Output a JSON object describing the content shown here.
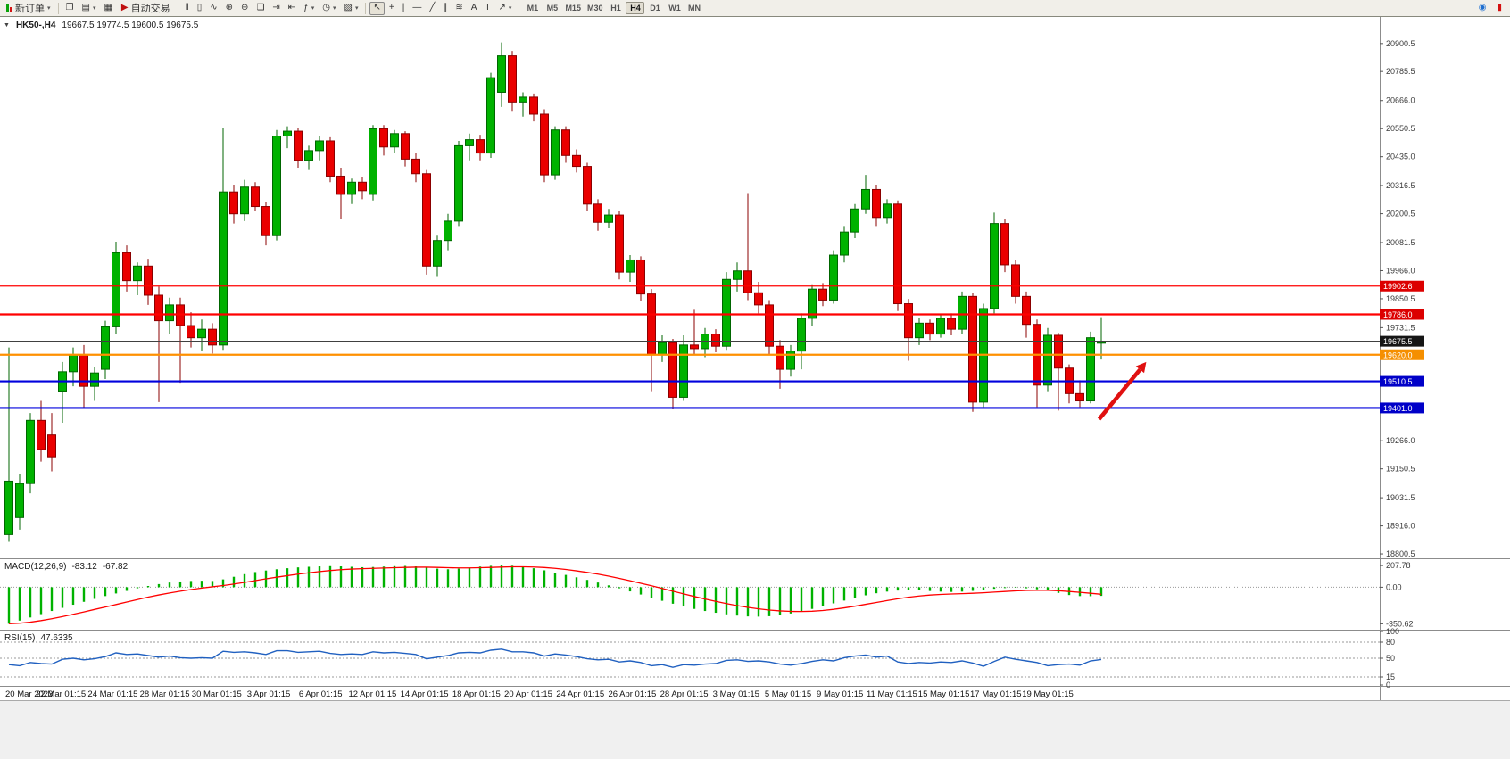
{
  "toolbar": {
    "new_order_label": "新订单",
    "auto_trading_label": "自动交易",
    "timeframes": [
      "M1",
      "M5",
      "M15",
      "M30",
      "H1",
      "H4",
      "D1",
      "W1",
      "MN"
    ],
    "active_timeframe": "H4",
    "window_tools": [
      {
        "name": "new-chart-icon",
        "glyph": "❐"
      },
      {
        "name": "profiles-icon",
        "glyph": "▤",
        "caret": true
      },
      {
        "name": "data-window-icon",
        "glyph": "▦"
      }
    ],
    "chart_tools": [
      {
        "name": "bar-chart-icon",
        "glyph": "‖"
      },
      {
        "name": "candlestick-chart-icon",
        "glyph": "▯"
      },
      {
        "name": "line-chart-icon",
        "glyph": "∿"
      },
      {
        "name": "zoom-in-icon",
        "glyph": "⊕"
      },
      {
        "name": "zoom-out-icon",
        "glyph": "⊖"
      },
      {
        "name": "tile-windows-icon",
        "glyph": "❏"
      },
      {
        "name": "auto-scroll-icon",
        "glyph": "⇥"
      },
      {
        "name": "chart-shift-icon",
        "glyph": "⇤"
      },
      {
        "name": "indicators-icon",
        "glyph": "ƒ",
        "caret": true
      },
      {
        "name": "periods-icon",
        "glyph": "◷",
        "caret": true
      },
      {
        "name": "templates-icon",
        "glyph": "▧",
        "caret": true
      }
    ],
    "drawing_tools": [
      {
        "name": "cursor-icon",
        "glyph": "↖",
        "active": true
      },
      {
        "name": "crosshair-icon",
        "glyph": "+"
      },
      {
        "name": "vertical-line-icon",
        "glyph": "|"
      },
      {
        "name": "horizontal-line-icon",
        "glyph": "—"
      },
      {
        "name": "trendline-icon",
        "glyph": "╱"
      },
      {
        "name": "channel-icon",
        "glyph": "∥"
      },
      {
        "name": "fibonacci-icon",
        "glyph": "≋"
      },
      {
        "name": "text-icon",
        "glyph": "A"
      },
      {
        "name": "label-icon",
        "glyph": "T"
      },
      {
        "name": "arrows-icon",
        "glyph": "↗",
        "caret": true
      }
    ],
    "right_tools": [
      {
        "name": "community-icon",
        "glyph": "◉",
        "color": "#1f6fd0"
      },
      {
        "name": "alert-icon",
        "glyph": "▮",
        "color": "#d41010"
      }
    ]
  },
  "chart": {
    "collapse_glyph": "▼",
    "symbol_period": "HK50-,H4",
    "ohlc_text": "19667.5 19774.5 19600.5 19675.5"
  },
  "indicators": {
    "macd": {
      "name": "MACD(12,26,9)",
      "value_main": "-83.12",
      "value_signal": "-67.82"
    },
    "rsi": {
      "name": "RSI(15)",
      "value": "47.6335"
    }
  },
  "chart_data": [
    {
      "type": "candlestick",
      "symbol": "HK50-",
      "period": "H4",
      "last_ohlc": {
        "open": 19667.5,
        "high": 19774.5,
        "low": 19600.5,
        "close": 19675.5
      },
      "ylim": [
        18786,
        21010
      ],
      "y_ticks": [
        "20900.5",
        "20785.5",
        "20666.0",
        "20550.5",
        "20435.0",
        "20316.5",
        "20200.5",
        "20081.5",
        "19966.0",
        "19850.5",
        "19731.5",
        "19266.0",
        "19150.5",
        "19031.5",
        "18916.0",
        "18800.5"
      ],
      "hlines": [
        {
          "price": "19902.6",
          "color": "#ff0000",
          "width": 1.2,
          "tag": "19902.6",
          "tag_color": "#dc0000"
        },
        {
          "price": "19786.0",
          "color": "#ff0000",
          "width": 2.2,
          "tag": "19786.0",
          "tag_color": "#dc0000"
        },
        {
          "price": "19675.5",
          "color": "#404040",
          "width": 1.2,
          "tag": "19675.5",
          "tag_color": "#151515"
        },
        {
          "price": "19620.0",
          "color": "#ff9000",
          "width": 2.2,
          "tag": "19620.0",
          "tag_color": "#f58f00"
        },
        {
          "price": "19510.5",
          "color": "#0000dd",
          "width": 2.2,
          "tag": "19510.5",
          "tag_color": "#0000c8"
        },
        {
          "price": "19401.0",
          "color": "#0000dd",
          "width": 2.2,
          "tag": "19401.0",
          "tag_color": "#0000c8"
        }
      ],
      "up_color": "#00b200",
      "down_color": "#ea0000",
      "up_border": "#006600",
      "down_border": "#8b0000",
      "annotation_arrow": {
        "from_index": 101.8,
        "from_price": 19355,
        "to_index": 106.2,
        "to_price": 19590,
        "color": "#e01010"
      },
      "x_labels": [
        "20 Mar 2023",
        "22 Mar 01:15",
        "24 Mar 01:15",
        "28 Mar 01:15",
        "30 Mar 01:15",
        "3 Apr 01:15",
        "6 Apr 01:15",
        "12 Apr 01:15",
        "14 Apr 01:15",
        "18 Apr 01:15",
        "20 Apr 01:15",
        "24 Apr 01:15",
        "26 Apr 01:15",
        "28 Apr 01:15",
        "3 May 01:15",
        "5 May 01:15",
        "9 May 01:15",
        "11 May 01:15",
        "15 May 01:15",
        "17 May 01:15",
        "19 May 01:15"
      ],
      "candles": [
        [
          18880,
          19650,
          18850,
          19100
        ],
        [
          18950,
          19130,
          18900,
          19090
        ],
        [
          19090,
          19380,
          19050,
          19350
        ],
        [
          19350,
          19430,
          19180,
          19230
        ],
        [
          19290,
          19380,
          19140,
          19200
        ],
        [
          19470,
          19590,
          19340,
          19550
        ],
        [
          19550,
          19650,
          19490,
          19620
        ],
        [
          19620,
          19660,
          19400,
          19490
        ],
        [
          19490,
          19570,
          19430,
          19545
        ],
        [
          19560,
          19760,
          19520,
          19735
        ],
        [
          19735,
          20085,
          19705,
          20040
        ],
        [
          20040,
          20070,
          19880,
          19925
        ],
        [
          19925,
          20000,
          19865,
          19985
        ],
        [
          19985,
          20015,
          19825,
          19865
        ],
        [
          19865,
          19900,
          19425,
          19760
        ],
        [
          19760,
          19855,
          19705,
          19825
        ],
        [
          19825,
          19855,
          19505,
          19740
        ],
        [
          19740,
          19795,
          19650,
          19690
        ],
        [
          19690,
          19765,
          19635,
          19725
        ],
        [
          19725,
          19750,
          19625,
          19660
        ],
        [
          19660,
          20555,
          19640,
          20290
        ],
        [
          20290,
          20320,
          20160,
          20200
        ],
        [
          20200,
          20340,
          20170,
          20310
        ],
        [
          20310,
          20330,
          20210,
          20230
        ],
        [
          20230,
          20250,
          20070,
          20110
        ],
        [
          20110,
          20545,
          20090,
          20520
        ],
        [
          20520,
          20560,
          20470,
          20540
        ],
        [
          20540,
          20555,
          20390,
          20420
        ],
        [
          20420,
          20480,
          20380,
          20460
        ],
        [
          20460,
          20520,
          20420,
          20500
        ],
        [
          20500,
          20515,
          20330,
          20355
        ],
        [
          20355,
          20390,
          20180,
          20280
        ],
        [
          20280,
          20345,
          20240,
          20330
        ],
        [
          20330,
          20350,
          20260,
          20295
        ],
        [
          20280,
          20565,
          20255,
          20550
        ],
        [
          20550,
          20565,
          20440,
          20475
        ],
        [
          20475,
          20545,
          20450,
          20530
        ],
        [
          20530,
          20540,
          20395,
          20425
        ],
        [
          20425,
          20450,
          20330,
          20365
        ],
        [
          20365,
          20380,
          19950,
          19985
        ],
        [
          19985,
          20110,
          19940,
          20090
        ],
        [
          20090,
          20200,
          20050,
          20170
        ],
        [
          20170,
          20500,
          20150,
          20480
        ],
        [
          20480,
          20530,
          20420,
          20505
        ],
        [
          20505,
          20525,
          20420,
          20450
        ],
        [
          20450,
          20780,
          20430,
          20760
        ],
        [
          20700,
          20905,
          20640,
          20850
        ],
        [
          20850,
          20870,
          20620,
          20660
        ],
        [
          20660,
          20700,
          20600,
          20680
        ],
        [
          20680,
          20695,
          20580,
          20610
        ],
        [
          20610,
          20630,
          20330,
          20360
        ],
        [
          20360,
          20560,
          20340,
          20545
        ],
        [
          20545,
          20560,
          20410,
          20440
        ],
        [
          20440,
          20465,
          20370,
          20395
        ],
        [
          20395,
          20410,
          20210,
          20240
        ],
        [
          20240,
          20260,
          20130,
          20165
        ],
        [
          20165,
          20220,
          20140,
          20195
        ],
        [
          20195,
          20210,
          19930,
          19960
        ],
        [
          19960,
          20030,
          19920,
          20010
        ],
        [
          20010,
          20025,
          19840,
          19870
        ],
        [
          19870,
          19890,
          19470,
          19620
        ],
        [
          19620,
          19700,
          19590,
          19670
        ],
        [
          19670,
          19685,
          19395,
          19445
        ],
        [
          19445,
          19700,
          19430,
          19660
        ],
        [
          19660,
          19805,
          19620,
          19645
        ],
        [
          19645,
          19730,
          19610,
          19705
        ],
        [
          19705,
          19725,
          19630,
          19655
        ],
        [
          19655,
          19960,
          19640,
          19930
        ],
        [
          19930,
          20000,
          19880,
          19965
        ],
        [
          19965,
          20285,
          19845,
          19875
        ],
        [
          19875,
          19920,
          19790,
          19825
        ],
        [
          19825,
          19845,
          19620,
          19655
        ],
        [
          19655,
          19680,
          19480,
          19560
        ],
        [
          19560,
          19660,
          19530,
          19635
        ],
        [
          19635,
          19790,
          19560,
          19770
        ],
        [
          19770,
          19910,
          19740,
          19890
        ],
        [
          19890,
          19915,
          19820,
          19845
        ],
        [
          19845,
          20050,
          19830,
          20030
        ],
        [
          20030,
          20150,
          20000,
          20125
        ],
        [
          20125,
          20240,
          20100,
          20220
        ],
        [
          20220,
          20360,
          20200,
          20300
        ],
        [
          20300,
          20320,
          20150,
          20185
        ],
        [
          20185,
          20260,
          20160,
          20240
        ],
        [
          20240,
          20255,
          19800,
          19830
        ],
        [
          19830,
          19850,
          19595,
          19690
        ],
        [
          19690,
          19770,
          19660,
          19750
        ],
        [
          19750,
          19765,
          19680,
          19705
        ],
        [
          19705,
          19785,
          19690,
          19770
        ],
        [
          19770,
          19790,
          19700,
          19725
        ],
        [
          19725,
          19880,
          19705,
          19860
        ],
        [
          19860,
          19875,
          19385,
          19425
        ],
        [
          19425,
          19830,
          19405,
          19810
        ],
        [
          19810,
          20205,
          19790,
          20160
        ],
        [
          20160,
          20180,
          19960,
          19990
        ],
        [
          19990,
          20010,
          19830,
          19860
        ],
        [
          19860,
          19880,
          19690,
          19745
        ],
        [
          19745,
          19765,
          19405,
          19495
        ],
        [
          19495,
          19730,
          19470,
          19700
        ],
        [
          19700,
          19710,
          19390,
          19565
        ],
        [
          19565,
          19580,
          19420,
          19460
        ],
        [
          19460,
          19515,
          19405,
          19430
        ],
        [
          19430,
          19715,
          19420,
          19690
        ],
        [
          19667.5,
          19774.5,
          19600.5,
          19675.5
        ]
      ]
    },
    {
      "type": "macd_histogram",
      "name": "MACD(12,26,9)",
      "current_main": -83.12,
      "current_signal": -67.82,
      "ylim": [
        -390,
        260
      ],
      "y_ticks": [
        "207.78",
        "0.00",
        "-350.62"
      ],
      "histogram_color": "#00b200",
      "signal_color": "#ff0000",
      "histogram": [
        -350,
        -320,
        -290,
        -258,
        -228,
        -198,
        -168,
        -140,
        -112,
        -85,
        -60,
        -35,
        -10,
        12,
        30,
        45,
        55,
        60,
        62,
        60,
        75,
        100,
        125,
        145,
        160,
        172,
        182,
        190,
        196,
        200,
        202,
        200,
        196,
        192,
        194,
        198,
        202,
        204,
        200,
        190,
        178,
        172,
        178,
        188,
        198,
        205,
        208,
        206,
        196,
        182,
        162,
        140,
        118,
        95,
        70,
        45,
        18,
        -10,
        -40,
        -70,
        -100,
        -130,
        -158,
        -185,
        -208,
        -228,
        -245,
        -260,
        -272,
        -280,
        -282,
        -278,
        -268,
        -252,
        -232,
        -208,
        -182,
        -155,
        -128,
        -102,
        -78,
        -58,
        -42,
        -32,
        -28,
        -30,
        -36,
        -42,
        -45,
        -42,
        -35,
        -25,
        -15,
        -8,
        -5,
        -10,
        -20,
        -35,
        -55,
        -75,
        -85,
        -86,
        -83.12
      ],
      "signal": [
        -350,
        -345,
        -335,
        -320,
        -302,
        -282,
        -260,
        -237,
        -213,
        -190,
        -166,
        -142,
        -118,
        -95,
        -74,
        -55,
        -38,
        -22,
        -8,
        4,
        16,
        30,
        46,
        63,
        80,
        96,
        111,
        125,
        138,
        150,
        160,
        168,
        174,
        178,
        181,
        184,
        187,
        190,
        192,
        192,
        190,
        187,
        185,
        185,
        187,
        190,
        193,
        196,
        196,
        194,
        189,
        181,
        170,
        157,
        142,
        125,
        106,
        85,
        62,
        38,
        14,
        -12,
        -38,
        -64,
        -89,
        -113,
        -136,
        -157,
        -176,
        -193,
        -207,
        -219,
        -227,
        -232,
        -233,
        -230,
        -223,
        -212,
        -198,
        -182,
        -164,
        -146,
        -128,
        -111,
        -96,
        -84,
        -75,
        -69,
        -65,
        -62,
        -58,
        -53,
        -47,
        -41,
        -35,
        -31,
        -29,
        -30,
        -34,
        -41,
        -49,
        -58,
        -67.82
      ]
    },
    {
      "type": "rsi_line",
      "name": "RSI(15)",
      "current": 47.6335,
      "ylim": [
        0,
        100
      ],
      "y_ticks": [
        "100",
        "80",
        "50",
        "15",
        "0"
      ],
      "levels": [
        80,
        50,
        15
      ],
      "line_color": "#2060c0",
      "values": [
        38,
        36,
        42,
        40,
        39,
        48,
        50,
        47,
        49,
        53,
        60,
        57,
        58,
        55,
        52,
        54,
        51,
        50,
        51,
        50,
        63,
        61,
        62,
        60,
        57,
        64,
        64,
        61,
        62,
        63,
        59,
        57,
        58,
        57,
        62,
        60,
        61,
        59,
        57,
        49,
        52,
        55,
        60,
        61,
        60,
        65,
        67,
        62,
        62,
        60,
        54,
        58,
        56,
        53,
        49,
        47,
        48,
        43,
        45,
        42,
        36,
        38,
        33,
        38,
        37,
        39,
        40,
        46,
        47,
        44,
        45,
        43,
        39,
        37,
        40,
        44,
        47,
        45,
        51,
        54,
        56,
        52,
        54,
        43,
        40,
        42,
        41,
        43,
        42,
        45,
        41,
        35,
        44,
        52,
        48,
        45,
        42,
        36,
        38,
        39,
        37,
        45,
        47.63
      ]
    }
  ]
}
